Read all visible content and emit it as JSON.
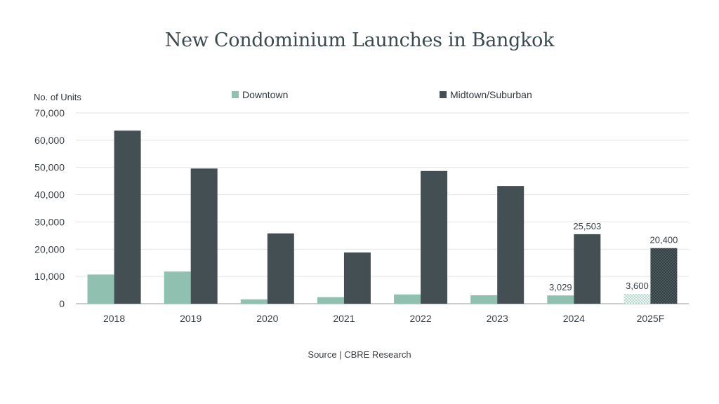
{
  "title": "New Condominium Launches in Bangkok",
  "source": "Source | CBRE Research",
  "colors": {
    "downtown": "#8fc0b0",
    "midtown": "#444f53",
    "grid": "#e3e3e3",
    "axis": "#9a9a9a"
  },
  "chart_data": {
    "type": "bar",
    "title": "New Condominium Launches in Bangkok",
    "ylabel": "No. of Units",
    "xlabel": "",
    "categories": [
      "2018",
      "2019",
      "2020",
      "2021",
      "2022",
      "2023",
      "2024",
      "2025F"
    ],
    "ylim": [
      0,
      70000
    ],
    "yticks": [
      0,
      10000,
      20000,
      30000,
      40000,
      50000,
      60000,
      70000
    ],
    "ytick_labels": [
      "0",
      "10,000",
      "20,000",
      "30,000",
      "40,000",
      "50,000",
      "60,000",
      "70,000"
    ],
    "grid": true,
    "legend_position": "top",
    "forecast_pattern_category": "2025F",
    "series": [
      {
        "name": "Downtown",
        "values": [
          10700,
          11800,
          1600,
          2400,
          3400,
          3100,
          3029,
          3600
        ],
        "data_labels": [
          "",
          "",
          "",
          "",
          "",
          "",
          "3,029",
          "3,600"
        ]
      },
      {
        "name": "Midtown/Suburban",
        "values": [
          63500,
          49600,
          25800,
          18800,
          48700,
          43200,
          25503,
          20400
        ],
        "data_labels": [
          "",
          "",
          "",
          "",
          "",
          "",
          "25,503",
          "20,400"
        ]
      }
    ]
  }
}
